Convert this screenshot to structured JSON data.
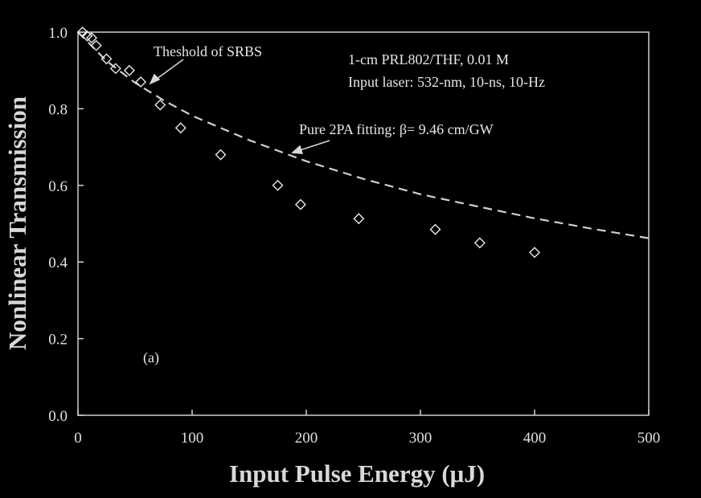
{
  "chart_data": {
    "type": "scatter",
    "title": "",
    "xlabel": "Input Pulse Energy (μJ)",
    "ylabel": "Nonlinear Transmission",
    "xlim": [
      0,
      500
    ],
    "ylim": [
      0.0,
      1.0
    ],
    "x_ticks": [
      "0",
      "100",
      "200",
      "300",
      "400",
      "500"
    ],
    "y_ticks": [
      "0.0",
      "0.2",
      "0.4",
      "0.6",
      "0.8",
      "1.0"
    ],
    "grid": false,
    "series": [
      {
        "name": "",
        "marker": "diamond-open",
        "points": [
          {
            "x": 4,
            "y": 1.0
          },
          {
            "x": 8,
            "y": 0.99
          },
          {
            "x": 12,
            "y": 0.985
          },
          {
            "x": 16,
            "y": 0.965
          },
          {
            "x": 25,
            "y": 0.93
          },
          {
            "x": 33,
            "y": 0.905
          },
          {
            "x": 45,
            "y": 0.9
          },
          {
            "x": 55,
            "y": 0.87
          },
          {
            "x": 72,
            "y": 0.81
          },
          {
            "x": 90,
            "y": 0.75
          },
          {
            "x": 125,
            "y": 0.68
          },
          {
            "x": 175,
            "y": 0.6
          },
          {
            "x": 195,
            "y": 0.55
          },
          {
            "x": 246,
            "y": 0.513
          },
          {
            "x": 313,
            "y": 0.485
          },
          {
            "x": 352,
            "y": 0.45
          },
          {
            "x": 400,
            "y": 0.425
          }
        ]
      },
      {
        "name": "Pure 2PA fitting",
        "style": "dashed-line",
        "points": [
          {
            "x": 0,
            "y": 1.0
          },
          {
            "x": 25,
            "y": 0.925
          },
          {
            "x": 50,
            "y": 0.868
          },
          {
            "x": 75,
            "y": 0.822
          },
          {
            "x": 100,
            "y": 0.782
          },
          {
            "x": 150,
            "y": 0.718
          },
          {
            "x": 200,
            "y": 0.663
          },
          {
            "x": 250,
            "y": 0.617
          },
          {
            "x": 300,
            "y": 0.577
          },
          {
            "x": 350,
            "y": 0.545
          },
          {
            "x": 400,
            "y": 0.514
          },
          {
            "x": 450,
            "y": 0.487
          },
          {
            "x": 500,
            "y": 0.462
          }
        ]
      }
    ],
    "annotations": {
      "threshold": "Theshold of SRBS",
      "sample": "1-cm PRL802/THF, 0.01 M",
      "laser": "Input laser: 532-nm, 10-ns, 10-Hz",
      "fit": "Pure 2PA fitting: β= 9.46 cm/GW",
      "panel": "(a)"
    },
    "colors": {
      "background": "#000000",
      "foreground": "#e0e0e0",
      "axis": "#d0d0d0"
    }
  }
}
